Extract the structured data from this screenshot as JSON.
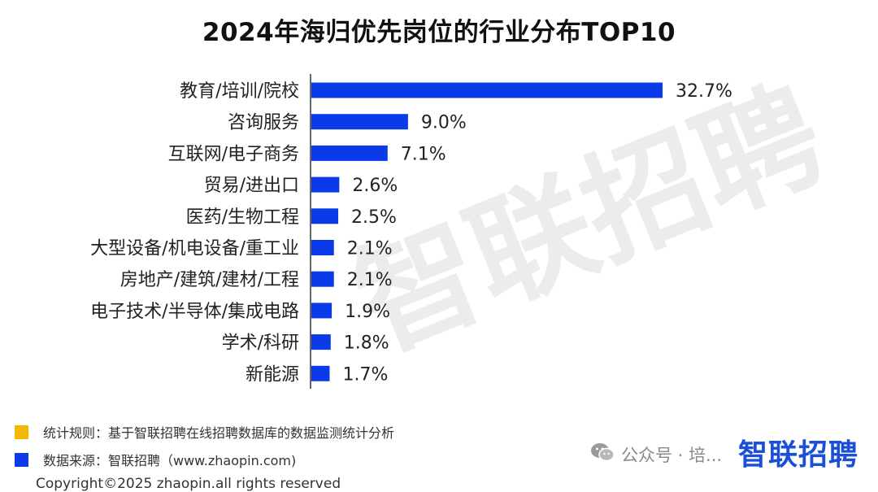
{
  "chart_data": {
    "type": "bar",
    "orientation": "horizontal",
    "title": "2024年海归优先岗位的行业分布TOP10",
    "categories": [
      "教育/培训/院校",
      "咨询服务",
      "互联网/电子商务",
      "贸易/进出口",
      "医药/生物工程",
      "大型设备/机电设备/重工业",
      "房地产/建筑/建材/工程",
      "电子技术/半导体/集成电路",
      "学术/科研",
      "新能源"
    ],
    "values": [
      32.7,
      9.0,
      7.1,
      2.6,
      2.5,
      2.1,
      2.1,
      1.9,
      1.8,
      1.7
    ],
    "value_labels": [
      "32.7%",
      "9.0%",
      "7.1%",
      "2.6%",
      "2.5%",
      "2.1%",
      "2.1%",
      "1.9%",
      "1.8%",
      "1.7%"
    ],
    "unit": "%",
    "xlim": [
      0,
      33
    ],
    "grid": false,
    "bar_color": "#0b3be8"
  },
  "watermark_text": "智联招聘",
  "notes": {
    "rule": {
      "label": "统计规则：基于智联招聘在线招聘数据库的数据监测统计分析",
      "color": "#f5b800"
    },
    "source": {
      "label": "数据来源：智联招聘（www.zhaopin.com)",
      "color": "#0b3be8"
    }
  },
  "copyright": "Copyright©2025 zhaopin.all rights reserved",
  "wechat": {
    "text": "公众号 · 培...",
    "icon": "wechat-icon"
  },
  "brand": {
    "text": "智联招聘",
    "color": "#1a4fd6"
  }
}
